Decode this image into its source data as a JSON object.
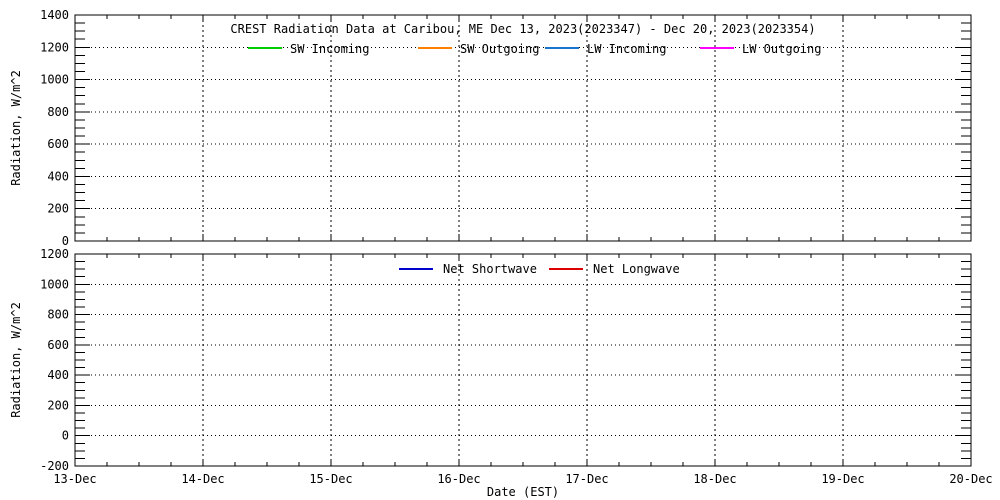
{
  "figure": {
    "background": "#ffffff",
    "axis_color": "#000000",
    "note": "two stacked panels, axes and legends only; no data traces visible in plot areas"
  },
  "chart_data": [
    {
      "id": "radiation-components",
      "type": "line",
      "title": "CREST Radiation Data at Caribou, ME   Dec 13, 2023(2023347) - Dec 20, 2023(2023354)",
      "ylabel": "Radiation, W/m^2",
      "ylim": [
        0,
        1400
      ],
      "ytick_step": 200,
      "yminor_step": 50,
      "ytick_labels": [
        "0",
        "200",
        "400",
        "600",
        "800",
        "1000",
        "1200",
        "1400"
      ],
      "xtick_labels": [
        "13-Dec",
        "14-Dec",
        "15-Dec",
        "16-Dec",
        "17-Dec",
        "18-Dec",
        "19-Dec",
        "20-Dec"
      ],
      "show_x_labels": false,
      "grid": "dotted",
      "legend_position": "top-inside",
      "series": [
        {
          "name": "SW Incoming",
          "color": "#00cd00",
          "values": []
        },
        {
          "name": "SW Outgoing",
          "color": "#ff8000",
          "values": []
        },
        {
          "name": "LW Incoming",
          "color": "#1874cd",
          "values": []
        },
        {
          "name": "LW Outgoing",
          "color": "#ff00ff",
          "values": []
        }
      ]
    },
    {
      "id": "net-radiation",
      "type": "line",
      "title": "",
      "ylabel": "Radiation, W/m^2",
      "xlabel": "Date (EST)",
      "ylim": [
        -200,
        1200
      ],
      "ytick_step": 200,
      "yminor_step": 50,
      "ytick_labels": [
        "-200",
        "0",
        "200",
        "400",
        "600",
        "800",
        "1000",
        "1200"
      ],
      "xtick_labels": [
        "13-Dec",
        "14-Dec",
        "15-Dec",
        "16-Dec",
        "17-Dec",
        "18-Dec",
        "19-Dec",
        "20-Dec"
      ],
      "show_x_labels": true,
      "grid": "dotted",
      "legend_position": "top-inside",
      "series": [
        {
          "name": "Net Shortwave",
          "color": "#0000cd",
          "values": []
        },
        {
          "name": "Net Longwave",
          "color": "#dd0000",
          "values": []
        }
      ]
    }
  ]
}
